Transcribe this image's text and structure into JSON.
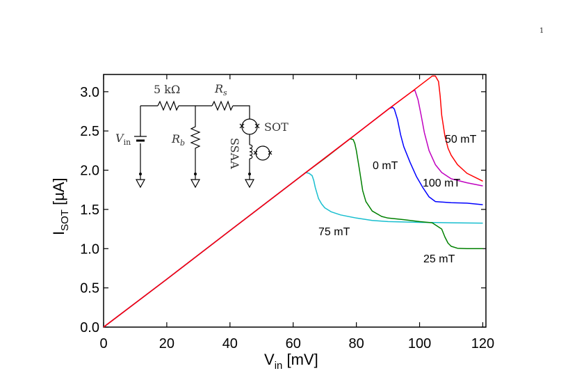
{
  "page_number": "1",
  "chart_data": {
    "type": "line",
    "title": "",
    "xlabel": {
      "base": "V",
      "sub": "in",
      "unit": " [mV]"
    },
    "ylabel": {
      "base": "I",
      "sub": "SOT",
      "unit": " [µA]"
    },
    "xlim": [
      0,
      121
    ],
    "ylim": [
      0,
      3.22
    ],
    "xticks": [
      0,
      20,
      40,
      60,
      80,
      100,
      120
    ],
    "xtick_labels": [
      "0",
      "20",
      "40",
      "60",
      "80",
      "100",
      "120"
    ],
    "yticks": [
      0.0,
      0.5,
      1.0,
      1.5,
      2.0,
      2.5,
      3.0
    ],
    "ytick_labels": [
      "0.0",
      "0.5",
      "1.0",
      "1.5",
      "2.0",
      "2.5",
      "3.0"
    ],
    "series": [
      {
        "name": "75 mT",
        "label": "75 mT",
        "color": "#17becf",
        "x": [
          0,
          20,
          40,
          64,
          65,
          66,
          66.5,
          67,
          68,
          69,
          70,
          72,
          75,
          80,
          85,
          90,
          100,
          110,
          120
        ],
        "y": [
          0,
          0.61,
          1.23,
          1.97,
          1.96,
          1.93,
          1.87,
          1.78,
          1.64,
          1.57,
          1.52,
          1.47,
          1.43,
          1.39,
          1.36,
          1.345,
          1.335,
          1.33,
          1.325
        ]
      },
      {
        "name": "25 mT",
        "label": "25 mT",
        "color": "#008000",
        "x": [
          0,
          20,
          40,
          64,
          70,
          78,
          79,
          79.5,
          80,
          81,
          82,
          83,
          85,
          88,
          90,
          95,
          100,
          104,
          107,
          108,
          109,
          110,
          112,
          115,
          120
        ],
        "y": [
          0,
          0.61,
          1.23,
          1.97,
          2.15,
          2.4,
          2.39,
          2.34,
          2.25,
          2.0,
          1.74,
          1.6,
          1.48,
          1.41,
          1.39,
          1.37,
          1.345,
          1.33,
          1.25,
          1.15,
          1.07,
          1.03,
          1.005,
          1.0,
          1.0
        ]
      },
      {
        "name": "0 mT",
        "label": "0 mT",
        "color": "#0000ff",
        "x": [
          0,
          20,
          40,
          64,
          78,
          90.5,
          91.5,
          92,
          93,
          94,
          95,
          97,
          99,
          101,
          103,
          105,
          110,
          115,
          120
        ],
        "y": [
          0,
          0.61,
          1.23,
          1.97,
          2.4,
          2.79,
          2.8,
          2.78,
          2.65,
          2.45,
          2.3,
          2.1,
          1.92,
          1.78,
          1.66,
          1.6,
          1.585,
          1.58,
          1.56
        ]
      },
      {
        "name": "100 mT",
        "label": "100 mT",
        "color": "#c000c0",
        "x": [
          0,
          20,
          40,
          64,
          78,
          90.5,
          97.5,
          98.5,
          99.5,
          100.5,
          101.5,
          103,
          105,
          107,
          110,
          115,
          120
        ],
        "y": [
          0,
          0.61,
          1.23,
          1.97,
          2.4,
          2.79,
          3.0,
          3.02,
          2.9,
          2.7,
          2.48,
          2.25,
          2.07,
          1.97,
          1.89,
          1.84,
          1.8
        ]
      },
      {
        "name": "50 mT",
        "label": "50 mT",
        "color": "#ff0000",
        "x": [
          0,
          20,
          40,
          64,
          78,
          90.5,
          97.5,
          104,
          105,
          106,
          106.5,
          107,
          108,
          109,
          110,
          112,
          115,
          120
        ],
        "y": [
          0,
          0.61,
          1.23,
          1.97,
          2.4,
          2.79,
          3.0,
          3.2,
          3.2,
          3.13,
          2.95,
          2.7,
          2.44,
          2.28,
          2.19,
          2.07,
          1.96,
          1.86
        ]
      }
    ]
  },
  "inset": {
    "resistor_label": "5 kΩ",
    "rs_label": {
      "base": "R",
      "sub": "s"
    },
    "rb_label": {
      "base": "R",
      "sub": "b"
    },
    "vin_label": {
      "base": "V",
      "sub": "in"
    },
    "sot_label": "SOT",
    "ssaa_label": "SSAA"
  }
}
